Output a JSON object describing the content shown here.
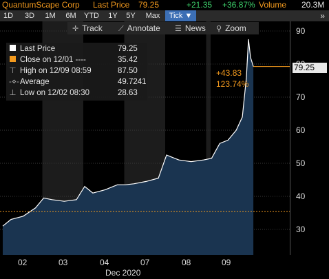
{
  "header": {
    "ticker": "QuantumScape Corp",
    "last_price_label": "Last Price",
    "last_price": "79.25",
    "change": "+21.35",
    "change_pct": "+36.87%",
    "volume_label": "Volume",
    "volume": "20.3M"
  },
  "ranges": [
    "1D",
    "3D",
    "1M",
    "6M",
    "YTD",
    "1Y",
    "5Y",
    "Max",
    "Tick ▼"
  ],
  "active_range": "Tick",
  "more_icon": "»",
  "toolbar": {
    "track": "Track",
    "annotate": "Annotate",
    "news": "News",
    "zoom": "Zoom"
  },
  "legend": {
    "last_price": {
      "label": "Last Price",
      "value": "79.25"
    },
    "close": {
      "label": "Close on 12/01 ----",
      "value": "35.42"
    },
    "high": {
      "label": "High on 12/09 08:59",
      "value": "87.50"
    },
    "average": {
      "label": "Average",
      "value": "49.7241"
    },
    "low": {
      "label": "Low on 12/02 08:30",
      "value": "28.63"
    }
  },
  "price_tag": "79.25",
  "change_annotation": {
    "abs": "+43.83",
    "pct": "123.74%"
  },
  "colors": {
    "orange": "#f39a1e",
    "green": "#3ccf6a",
    "area": "#1a3450",
    "line": "#ffffff",
    "active_tab": "#3c6fb5"
  },
  "chart_data": {
    "type": "area",
    "y_ticks": [
      "90",
      "80",
      "70",
      "60",
      "50",
      "40",
      "30"
    ],
    "ylim": [
      23,
      92
    ],
    "x_tick_labels": [
      "02",
      "03",
      "04",
      "07",
      "08",
      "09"
    ],
    "x_month_label": "Dec 2020",
    "reference_close": 35.42,
    "series": [
      {
        "x": [
          0,
          0.2,
          0.5,
          0.8,
          1,
          1.2,
          1.5,
          1.8,
          2,
          2.2,
          2.5,
          2.8,
          3,
          3.2,
          3.5,
          3.8,
          4,
          4.1,
          4.3,
          4.6,
          4.9,
          5.1,
          5.3,
          5.5,
          5.7,
          5.85,
          5.95,
          6.0,
          6.05,
          6.12
        ],
        "y": [
          31,
          33,
          34,
          36.5,
          39.5,
          39,
          38.5,
          39,
          43,
          41,
          42,
          43.5,
          43.5,
          43.8,
          44.5,
          45.5,
          52.5,
          52,
          51,
          50.5,
          51,
          51.5,
          56,
          57,
          60,
          64,
          76,
          87.5,
          82,
          79.25
        ]
      }
    ]
  }
}
